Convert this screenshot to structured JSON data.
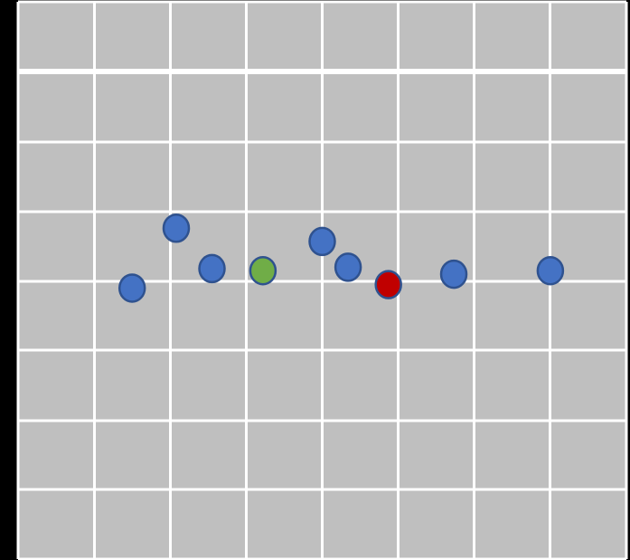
{
  "colors": {
    "background": "#000000",
    "board": "#bfbfbf",
    "grid_line": "#ffffff",
    "dot_stroke": "#2f528f",
    "blue_dot": "#4472c4",
    "green_dot": "#70ad47",
    "red_dot": "#c00000"
  },
  "grid": {
    "columns": 8,
    "rows": 8,
    "highlighted_row_line": 1
  },
  "dots": [
    {
      "name": "blue-dot-1",
      "color_key": "blue_dot",
      "col": 1.5,
      "row": 4.11
    },
    {
      "name": "blue-dot-2",
      "color_key": "blue_dot",
      "col": 2.08,
      "row": 3.25
    },
    {
      "name": "blue-dot-3",
      "color_key": "blue_dot",
      "col": 2.55,
      "row": 3.83
    },
    {
      "name": "green-dot",
      "color_key": "green_dot",
      "col": 3.22,
      "row": 3.86
    },
    {
      "name": "blue-dot-4",
      "color_key": "blue_dot",
      "col": 4.0,
      "row": 3.44
    },
    {
      "name": "blue-dot-5",
      "color_key": "blue_dot",
      "col": 4.34,
      "row": 3.81
    },
    {
      "name": "red-dot",
      "color_key": "red_dot",
      "col": 4.87,
      "row": 4.06
    },
    {
      "name": "blue-dot-6",
      "color_key": "blue_dot",
      "col": 5.73,
      "row": 3.91
    },
    {
      "name": "blue-dot-7",
      "color_key": "blue_dot",
      "col": 7.0,
      "row": 3.86
    }
  ]
}
